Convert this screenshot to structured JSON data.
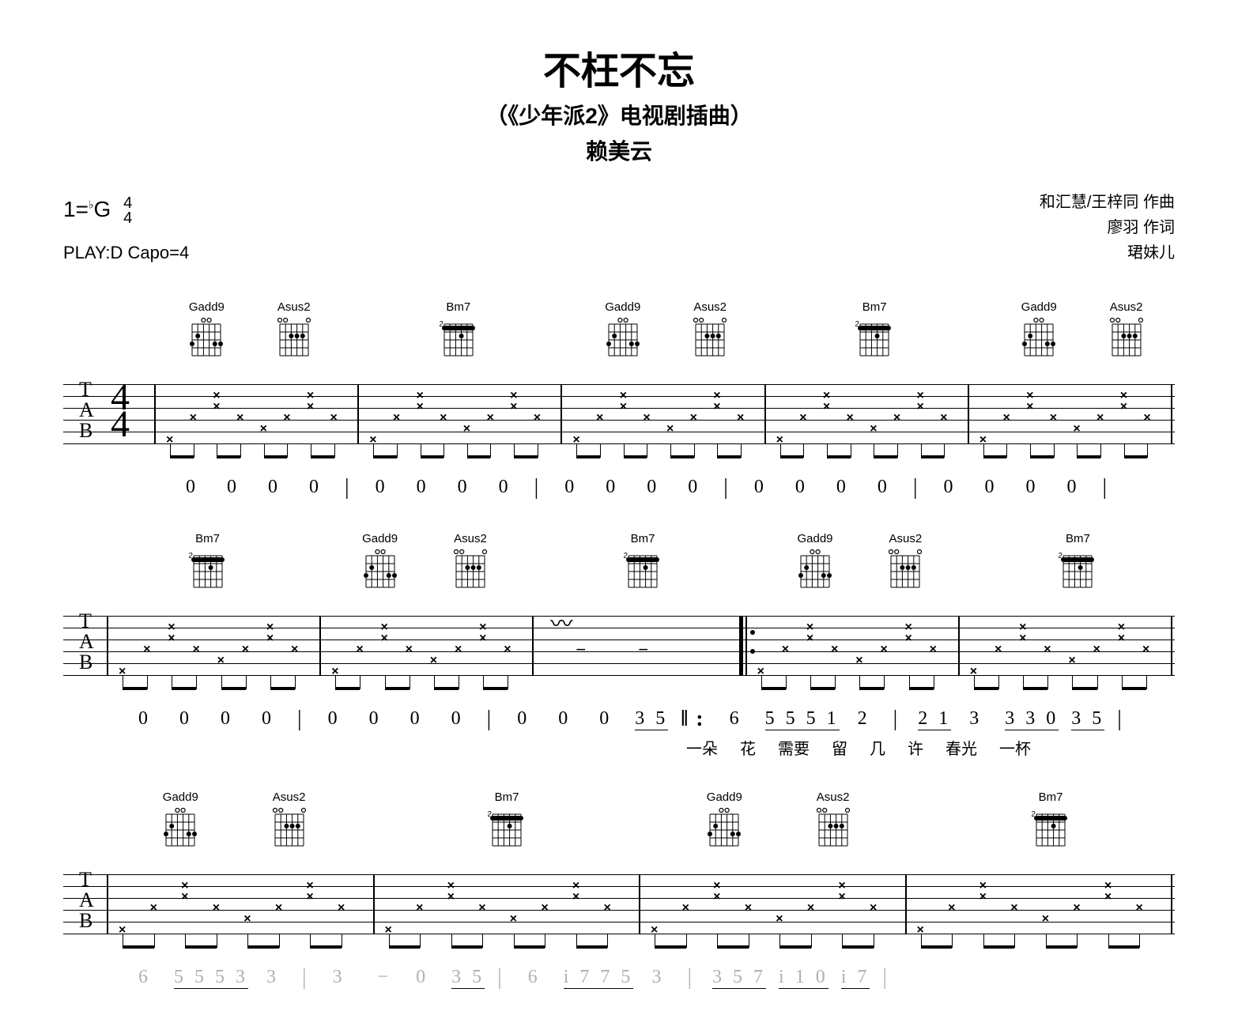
{
  "header": {
    "title": "不枉不忘",
    "subtitle": "（《少年派2》电视剧插曲）",
    "artist": "赖美云"
  },
  "meta": {
    "key_prefix": "1=",
    "flat": "♭",
    "key": "G",
    "timesig_num": "4",
    "timesig_den": "4",
    "play": "PLAY:D Capo=4",
    "composer": "和汇慧/王梓同 作曲",
    "lyricist": "廖羽 作词",
    "arranger": "珺妹儿"
  },
  "chords": {
    "Gadd9": "Gadd9",
    "Asus2": "Asus2",
    "Bm7": "Bm7"
  },
  "chord_diagrams": {
    "Gadd9": {
      "open": [
        2,
        3
      ],
      "dots": [
        [
          0,
          2
        ],
        [
          1,
          1
        ],
        [
          4,
          2
        ],
        [
          5,
          2
        ]
      ]
    },
    "Asus2": {
      "open": [
        0,
        1,
        5
      ],
      "dots": [
        [
          2,
          1
        ],
        [
          3,
          1
        ],
        [
          4,
          1
        ]
      ]
    },
    "Bm7": {
      "fret_marker": "2",
      "barre": [
        0,
        5,
        0
      ],
      "dots": [
        [
          0,
          0
        ],
        [
          1,
          0
        ],
        [
          2,
          0
        ],
        [
          3,
          1
        ],
        [
          4,
          0
        ],
        [
          5,
          0
        ]
      ]
    }
  },
  "tab_label": [
    "T",
    "A",
    "B"
  ],
  "systems": [
    {
      "chord_seq": [
        [
          "Gadd9",
          "Asus2"
        ],
        [
          "Bm7"
        ],
        [
          "Gadd9",
          "Asus2"
        ],
        [
          "Bm7"
        ],
        [
          "Gadd9",
          "Asus2"
        ]
      ],
      "show_timesig": true,
      "tab_pattern": "pattern_a",
      "numeric": [
        "0",
        "0",
        "0",
        "0",
        "|",
        "0",
        "0",
        "0",
        "0",
        "|",
        "0",
        "0",
        "0",
        "0",
        "|",
        "0",
        "0",
        "0",
        "0",
        "|",
        "0",
        "0",
        "0",
        "0",
        "|"
      ],
      "lyrics": []
    },
    {
      "chord_seq": [
        [
          "Bm7"
        ],
        [
          "Gadd9",
          "Asus2"
        ],
        [
          "Bm7"
        ],
        [
          "Gadd9",
          "Asus2"
        ],
        [
          "Bm7"
        ]
      ],
      "show_timesig": false,
      "tab_pattern": "pattern_b",
      "numeric": [
        "0",
        "0",
        "0",
        "0",
        "|",
        "0",
        "0",
        "0",
        "0",
        "|",
        "0",
        "0",
        "0",
        "3 5",
        "‖:",
        "6",
        "5 5 5 1",
        "2",
        "|",
        "2 1",
        "3",
        "3 3 0",
        "3 5",
        "|"
      ],
      "lyrics": [
        "",
        "",
        "",
        "",
        "",
        "",
        "",
        "",
        "一朵",
        "",
        "花",
        "需要",
        "留",
        "几",
        "",
        "许",
        "春光",
        "",
        "一杯"
      ]
    },
    {
      "chord_seq": [
        [
          "Gadd9",
          "Asus2"
        ],
        [
          "Bm7"
        ],
        [
          "Gadd9",
          "Asus2"
        ],
        [
          "Bm7"
        ]
      ],
      "show_timesig": false,
      "tab_pattern": "pattern_c",
      "numeric_faded": true,
      "numeric": [
        "6",
        "5 5 5 3",
        "3",
        "|",
        "3",
        "−",
        "0",
        "3 5",
        "|",
        "6",
        "i 7 7 5",
        "3",
        "|",
        "3 5 7",
        "i 1 0",
        "i 7",
        "|"
      ],
      "lyrics": []
    }
  ],
  "colors": {
    "text": "#000000",
    "bg": "#ffffff",
    "faded": "#b0b0b0"
  }
}
